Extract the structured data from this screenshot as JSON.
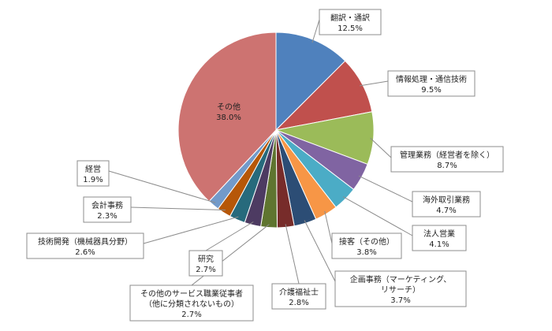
{
  "chart_data": {
    "type": "pie",
    "unit": "%",
    "slices": [
      {
        "name": "翻訳・通訳",
        "value": 12.5,
        "color": "#4f81bd"
      },
      {
        "name": "情報処理・通信技術",
        "value": 9.5,
        "color": "#c0504d"
      },
      {
        "name": "管理業務（経営者を除く）",
        "value": 8.7,
        "color": "#9bbb59"
      },
      {
        "name": "海外取引業務",
        "value": 4.7,
        "color": "#8064a2"
      },
      {
        "name": "法人営業",
        "value": 4.1,
        "color": "#4bacc6"
      },
      {
        "name": "接客（その他）",
        "value": 3.8,
        "color": "#f79646"
      },
      {
        "name": "企画事務（マーケティング、リサーチ）",
        "value": 3.7,
        "color": "#2c4d75"
      },
      {
        "name": "介護福祉士",
        "value": 2.8,
        "color": "#772c2a"
      },
      {
        "name": "その他のサービス職業従事者（他に分類されないもの）",
        "value": 2.7,
        "color": "#5f7530"
      },
      {
        "name": "研究",
        "value": 2.7,
        "color": "#4d3b62"
      },
      {
        "name": "技術開発（機械器具分野）",
        "value": 2.6,
        "color": "#276a7c"
      },
      {
        "name": "会計事務",
        "value": 2.3,
        "color": "#b65708"
      },
      {
        "name": "経営",
        "value": 1.9,
        "color": "#729aca"
      },
      {
        "name": "その他",
        "value": 38.0,
        "color": "#cd7371"
      }
    ],
    "labels": [
      {
        "lines": [
          "翻訳・通訳"
        ],
        "value_text": "12.5%"
      },
      {
        "lines": [
          "情報処理・通信技術"
        ],
        "value_text": "9.5%"
      },
      {
        "lines": [
          "管理業務（経営者を除く）"
        ],
        "value_text": "8.7%"
      },
      {
        "lines": [
          "海外取引業務"
        ],
        "value_text": "4.7%"
      },
      {
        "lines": [
          "法人営業"
        ],
        "value_text": "4.1%"
      },
      {
        "lines": [
          "接客（その他）"
        ],
        "value_text": "3.8%"
      },
      {
        "lines": [
          "企画事務（マーケティング、",
          "リサーチ）"
        ],
        "value_text": "3.7%"
      },
      {
        "lines": [
          "介護福祉士"
        ],
        "value_text": "2.8%"
      },
      {
        "lines": [
          "その他のサービス職業従事者",
          "（他に分類されないもの）"
        ],
        "value_text": "2.7%"
      },
      {
        "lines": [
          "研究"
        ],
        "value_text": "2.7%"
      },
      {
        "lines": [
          "技術開発（機械器具分野）"
        ],
        "value_text": "2.6%"
      },
      {
        "lines": [
          "会計事務"
        ],
        "value_text": "2.3%"
      },
      {
        "lines": [
          "経営"
        ],
        "value_text": "1.9%"
      },
      {
        "lines": [
          "その他"
        ],
        "value_text": "38.0%"
      }
    ]
  }
}
